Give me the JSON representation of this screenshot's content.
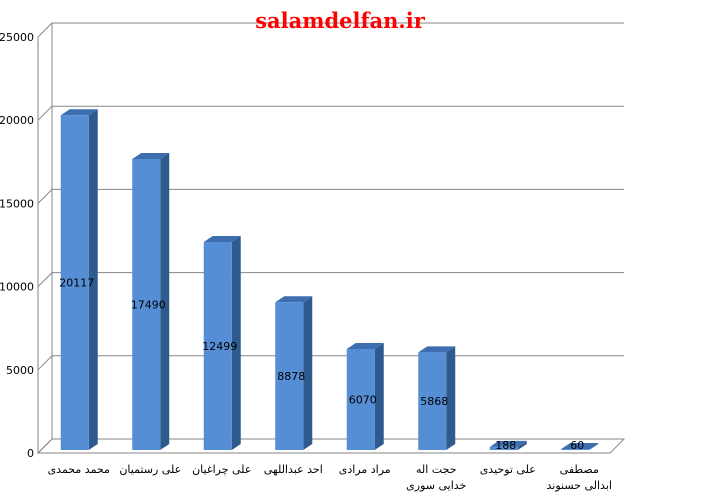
{
  "chart_data": {
    "type": "bar",
    "style": "3d-column",
    "title": "salamdelfan.ir",
    "categories": [
      [
        "محمد محمدی"
      ],
      [
        "علی رستمیان"
      ],
      [
        "علی چراغیان"
      ],
      [
        "احد عبداللهی"
      ],
      [
        "مراد مرادی"
      ],
      [
        "حجت اله",
        "خدایی سوری"
      ],
      [
        "علی توحیدی"
      ],
      [
        "مصطفی",
        "ابدالی حسنوند"
      ]
    ],
    "values": [
      20117,
      17490,
      12499,
      8878,
      6070,
      5868,
      188,
      60
    ],
    "data_labels": [
      "20117",
      "17490",
      "12499",
      "8878",
      "6070",
      "5868",
      "188",
      "60"
    ],
    "y_ticks": [
      "0",
      "5000",
      "10000",
      "15000",
      "20000",
      "25000"
    ],
    "ylim": [
      0,
      25000
    ],
    "grid": true,
    "legend": "none",
    "colors": {
      "bar_front": "#558ed5",
      "bar_side": "#2f5a8e",
      "bar_top": "#3d6fb0",
      "grid": "#868686",
      "title": "#ff0000"
    }
  }
}
